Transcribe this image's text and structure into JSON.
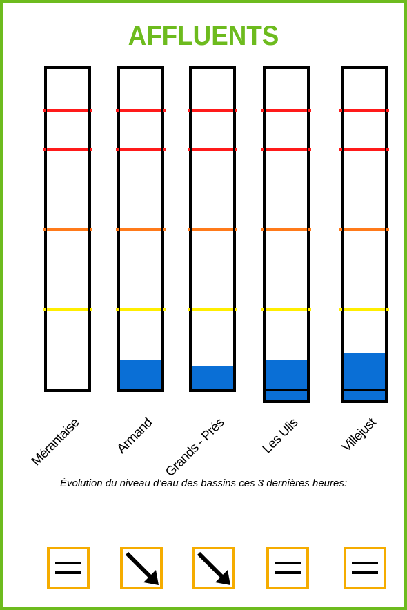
{
  "title": "AFFLUENTS",
  "colors": {
    "title": "#6dbb1e",
    "border": "#6dbb1e",
    "water": "#0a6fd6",
    "threshold_red": "#ff1a1a",
    "threshold_orange": "#ff7a1a",
    "threshold_yellow": "#ffee00",
    "trend_box": "#f5ac00"
  },
  "gauges": [
    {
      "name": "Mérantaise",
      "level_percent": 0,
      "overflow": false,
      "trend": "stable",
      "trend_icon": "equals-icon"
    },
    {
      "name": "Armand",
      "level_percent": 9.3,
      "overflow": false,
      "trend": "down",
      "trend_icon": "arrow-down-right-icon"
    },
    {
      "name": "Grands - Prés",
      "level_percent": 7.2,
      "overflow": false,
      "trend": "down",
      "trend_icon": "arrow-down-right-icon"
    },
    {
      "name": "Les Ulis",
      "level_percent": 9.0,
      "overflow": true,
      "trend": "stable",
      "trend_icon": "equals-icon"
    },
    {
      "name": "Villejust",
      "level_percent": 11.2,
      "overflow": true,
      "trend": "stable",
      "trend_icon": "equals-icon"
    }
  ],
  "thresholds": [
    {
      "level": "red",
      "level_percent": 87.0
    },
    {
      "level": "red",
      "level_percent": 74.8
    },
    {
      "level": "orange",
      "level_percent": 49.7
    },
    {
      "level": "yellow",
      "level_percent": 24.7
    }
  ],
  "caption": "Évolution du niveau d’eau des bassins ces 3 dernières heures:"
}
